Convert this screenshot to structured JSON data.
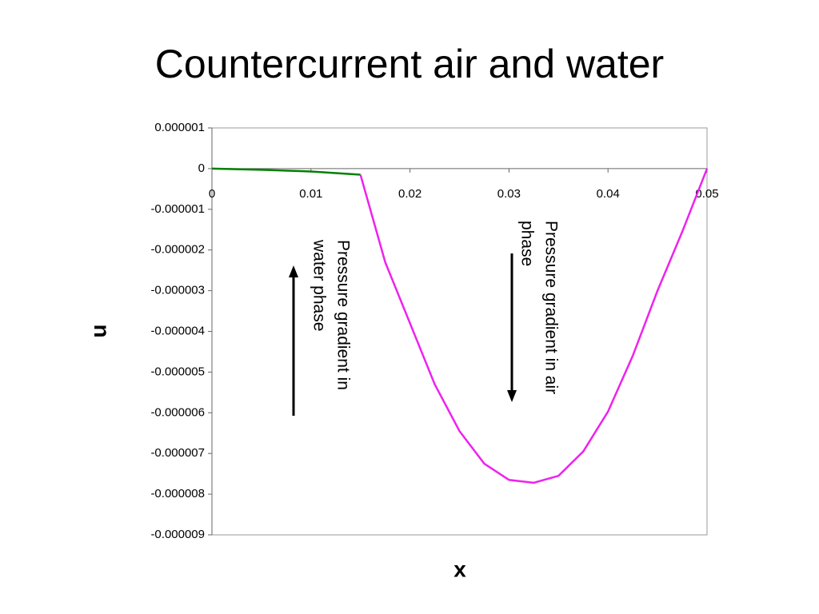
{
  "chart_data": {
    "type": "line",
    "title": "Countercurrent air and water",
    "x_label": "x",
    "y_label": "u",
    "series": [
      {
        "color": "#008000",
        "x": [
          0,
          0.005,
          0.01,
          0.015
        ],
        "values": [
          0,
          -3e-08,
          -7e-08,
          -1.5e-07
        ]
      },
      {
        "color": "#ee22ee",
        "x": [
          0.015,
          0.0175,
          0.02,
          0.0225,
          0.025,
          0.0275,
          0.03,
          0.0325,
          0.035,
          0.0375,
          0.04,
          0.0425,
          0.045,
          0.0475,
          0.05
        ],
        "values": [
          -1.5e-07,
          -2.3e-06,
          -3.8e-06,
          -5.3e-06,
          -6.45e-06,
          -7.25e-06,
          -7.65e-06,
          -7.72e-06,
          -7.55e-06,
          -6.95e-06,
          -5.97e-06,
          -4.6e-06,
          -3e-06,
          -1.55e-06,
          0
        ]
      }
    ],
    "xlim": [
      0,
      0.05
    ],
    "xticks": [
      0,
      0.01,
      0.02,
      0.03,
      0.04,
      0.05
    ],
    "ylim": [
      -9e-06,
      1e-06
    ],
    "yticks": [
      1e-06,
      0,
      -1e-06,
      -2e-06,
      -3e-06,
      -4e-06,
      -5e-06,
      -6e-06,
      -7e-06,
      -8e-06,
      -9e-06
    ],
    "annotations": [
      {
        "lines": [
          "Pressure gradient in",
          "water phase"
        ]
      },
      {
        "lines": [
          "Pressure gradient in air",
          "phase"
        ]
      }
    ]
  }
}
